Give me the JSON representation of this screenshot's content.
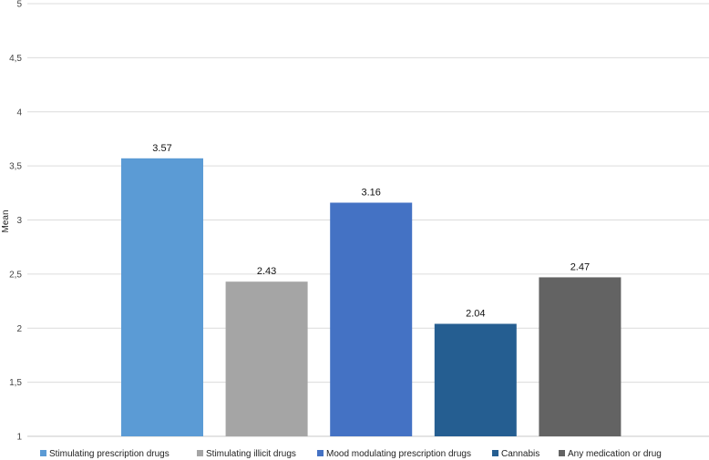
{
  "chart_data": {
    "type": "bar",
    "categories": [
      "Stimulating prescription drugs",
      "Stimulating illicit drugs",
      "Mood modulating prescription drugs",
      "Cannabis",
      "Any medication or drug"
    ],
    "values": [
      3.57,
      2.43,
      3.16,
      2.04,
      2.47
    ],
    "data_labels": [
      "3.57",
      "2.43",
      "3.16",
      "2.04",
      "2.47"
    ],
    "colors": [
      "#5b9bd5",
      "#a5a5a5",
      "#4472c4",
      "#255e91",
      "#636363"
    ],
    "ylabel": "Mean",
    "ylim": [
      1,
      5
    ],
    "yticks": [
      "1",
      "1,5",
      "2",
      "2,5",
      "3",
      "3,5",
      "4",
      "4,5",
      "5"
    ],
    "grid": true,
    "legend_position": "bottom"
  }
}
